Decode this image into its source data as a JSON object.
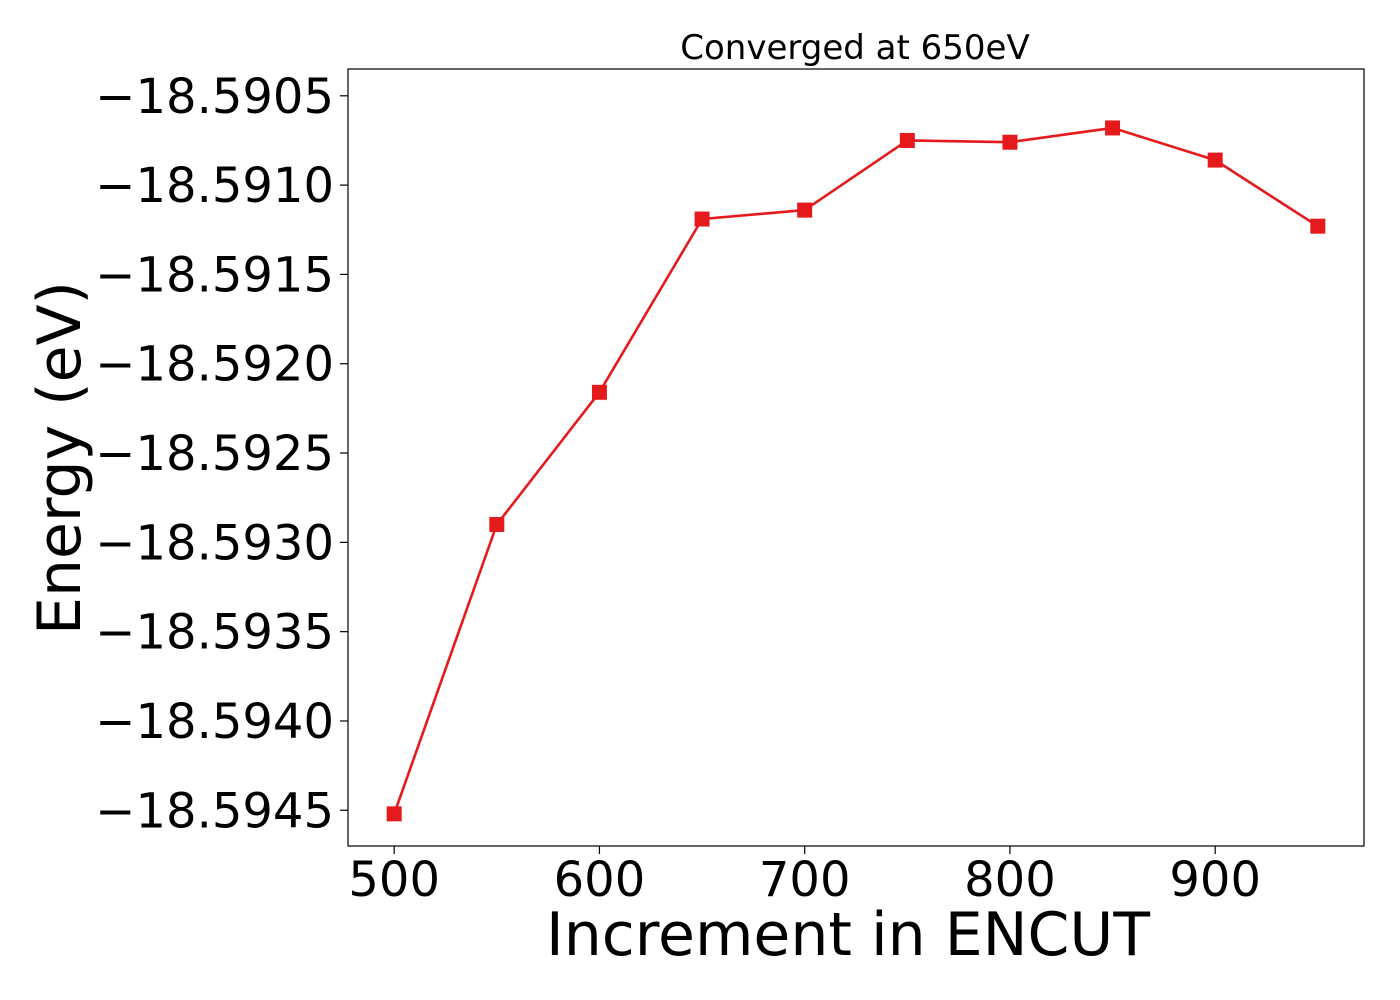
{
  "chart_data": {
    "type": "line",
    "title": "Converged at 650eV",
    "xlabel": "Increment in ENCUT",
    "ylabel": "Energy (eV)",
    "xlim": [
      477.5,
      972.5
    ],
    "ylim": [
      -18.5947,
      -18.59035
    ],
    "x_ticks": [
      500,
      600,
      700,
      800,
      900
    ],
    "x_tick_labels": [
      "500",
      "600",
      "700",
      "800",
      "900"
    ],
    "y_ticks": [
      -18.5905,
      -18.591,
      -18.5915,
      -18.592,
      -18.5925,
      -18.593,
      -18.5935,
      -18.594,
      -18.5945
    ],
    "y_tick_labels": [
      "−18.5905",
      "−18.5910",
      "−18.5915",
      "−18.5920",
      "−18.5925",
      "−18.5930",
      "−18.5935",
      "−18.5940",
      "−18.5945"
    ],
    "grid": false,
    "series": [
      {
        "color": "#e41a1c",
        "marker": "square",
        "x": [
          500,
          550,
          600,
          650,
          700,
          750,
          800,
          850,
          900,
          950
        ],
        "y": [
          -18.59452,
          -18.5929,
          -18.59216,
          -18.59119,
          -18.59114,
          -18.59075,
          -18.59076,
          -18.59068,
          -18.59086,
          -18.59123
        ]
      }
    ]
  }
}
